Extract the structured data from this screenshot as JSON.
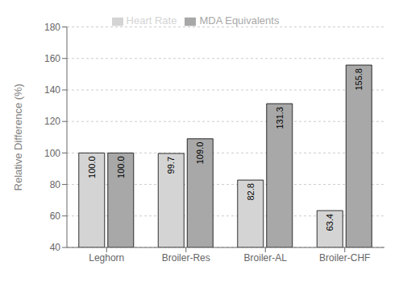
{
  "chart_data": {
    "type": "bar",
    "categories": [
      "Leghorn",
      "Broiler-Res",
      "Broiler-AL",
      "Broiler-CHF"
    ],
    "series": [
      {
        "name": "Heart Rate",
        "color": "#d4d4d4",
        "values": [
          100.0,
          99.7,
          82.8,
          63.4
        ],
        "value_labels": [
          "100.0",
          "99.7",
          "82.8",
          "63.4"
        ]
      },
      {
        "name": "MDA Equivalents",
        "color": "#a8a8a8",
        "values": [
          100.0,
          109.0,
          131.3,
          155.8
        ],
        "value_labels": [
          "100.0",
          "109.0",
          "131.3",
          "155.8"
        ]
      }
    ],
    "ylabel": "Relative Difference (%)",
    "ylim": [
      40,
      180
    ],
    "yticks": [
      40,
      60,
      80,
      100,
      120,
      140,
      160,
      180
    ],
    "grid": true,
    "legend": "top",
    "data_labels": true
  }
}
